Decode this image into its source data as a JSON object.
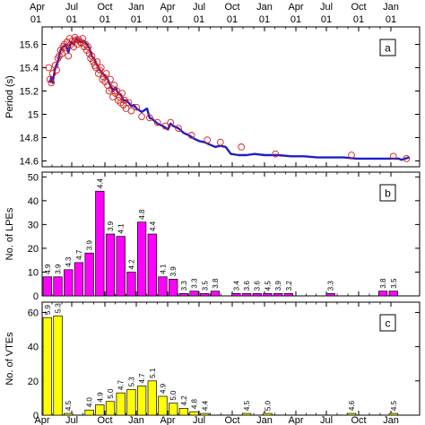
{
  "chart_data": [
    {
      "type": "line",
      "panel": "a",
      "ylabel": "Period (s)",
      "ylim": [
        14.55,
        15.75
      ],
      "yticks": [
        "15.6",
        "15.4",
        "15.2",
        "15",
        "14.8",
        "14.6"
      ],
      "top_axis_ticks": [
        {
          "month": "Apr",
          "day": "01"
        },
        {
          "month": "Jul",
          "day": "01"
        },
        {
          "month": "Oct",
          "day": "01"
        },
        {
          "month": "Jan",
          "day": "01"
        },
        {
          "month": "Apr",
          "day": "01"
        },
        {
          "month": "Jul",
          "day": "01"
        },
        {
          "month": "Oct",
          "day": "01"
        },
        {
          "month": "Jan",
          "day": "01"
        },
        {
          "month": "Apr",
          "day": "01"
        },
        {
          "month": "Jul",
          "day": "01"
        },
        {
          "month": "Oct",
          "day": "01"
        },
        {
          "month": "Jan",
          "day": "01"
        }
      ],
      "series": [
        {
          "kind": "line",
          "color": "#1f1fc8",
          "x": [
            3,
            3.5,
            4,
            5,
            6,
            7,
            8,
            9,
            10,
            11,
            12,
            13,
            14,
            15,
            16,
            17,
            18,
            19,
            20,
            21,
            22,
            23,
            24,
            25,
            26,
            27,
            28,
            29,
            30,
            31,
            32,
            33,
            34,
            35,
            36,
            38,
            40,
            41,
            42,
            44,
            46,
            48,
            49,
            50,
            52,
            54,
            56,
            58,
            60,
            62,
            64,
            66,
            68,
            70,
            72,
            75,
            78,
            81,
            85,
            90,
            95,
            100,
            105,
            110,
            115,
            120,
            125,
            130,
            136,
            137,
            140
          ],
          "y": [
            15.27,
            15.32,
            15.27,
            15.4,
            15.45,
            15.55,
            15.58,
            15.6,
            15.53,
            15.62,
            15.6,
            15.65,
            15.63,
            15.62,
            15.63,
            15.6,
            15.57,
            15.5,
            15.47,
            15.42,
            15.38,
            15.35,
            15.33,
            15.3,
            15.25,
            15.2,
            15.23,
            15.18,
            15.17,
            15.12,
            15.12,
            15.1,
            15.07,
            15.08,
            15.05,
            15.02,
            15.05,
            14.97,
            14.96,
            14.92,
            14.9,
            14.87,
            14.92,
            14.9,
            14.88,
            14.84,
            14.82,
            14.79,
            14.77,
            14.76,
            14.74,
            14.72,
            14.73,
            14.72,
            14.66,
            14.65,
            14.65,
            14.66,
            14.65,
            14.65,
            14.64,
            14.64,
            14.63,
            14.63,
            14.63,
            14.62,
            14.62,
            14.62,
            14.62,
            14.61,
            14.63
          ]
        },
        {
          "kind": "scatter",
          "color": "#d62020",
          "x": [
            2.5,
            3,
            3.5,
            4,
            5,
            5.5,
            6,
            6.5,
            7,
            7.5,
            8,
            8.5,
            9,
            9.5,
            10,
            10.5,
            11,
            11.5,
            12,
            12.5,
            13,
            13.5,
            14,
            14.5,
            15,
            15.5,
            16,
            16.5,
            17,
            17.5,
            18,
            18.5,
            19,
            19.5,
            20,
            20.5,
            21,
            21.5,
            22,
            22.5,
            23,
            23.5,
            24,
            24.5,
            25,
            25.5,
            26,
            26.5,
            27,
            27.5,
            28,
            28.5,
            29,
            29.5,
            30,
            30.5,
            31,
            31.5,
            32,
            33,
            34,
            36,
            38,
            41,
            44,
            47,
            49,
            52,
            57,
            63,
            68,
            76,
            89,
            118,
            134,
            139
          ],
          "y": [
            15.4,
            15.3,
            15.27,
            15.35,
            15.42,
            15.38,
            15.48,
            15.5,
            15.55,
            15.52,
            15.58,
            15.6,
            15.57,
            15.62,
            15.5,
            15.65,
            15.6,
            15.63,
            15.58,
            15.66,
            15.64,
            15.6,
            15.64,
            15.62,
            15.61,
            15.65,
            15.58,
            15.6,
            15.55,
            15.58,
            15.52,
            15.48,
            15.5,
            15.45,
            15.42,
            15.4,
            15.45,
            15.35,
            15.38,
            15.4,
            15.3,
            15.32,
            15.28,
            15.35,
            15.25,
            15.2,
            15.3,
            15.22,
            15.15,
            15.25,
            15.18,
            15.2,
            15.12,
            15.15,
            15.1,
            15.18,
            15.08,
            15.12,
            15.05,
            15.1,
            15.03,
            15.06,
            14.98,
            14.97,
            14.93,
            14.9,
            14.93,
            14.88,
            14.82,
            14.78,
            14.76,
            14.72,
            14.66,
            14.65,
            14.64,
            14.62
          ]
        }
      ]
    },
    {
      "type": "bar",
      "panel": "b",
      "ylabel": "No. of LPEs",
      "ylim": [
        0,
        52
      ],
      "yticks": [
        "50",
        "40",
        "30",
        "20",
        "10",
        "0"
      ],
      "bar_color": "#ff00ff",
      "bars": [
        {
          "x": 1,
          "value": 8,
          "label": "4.9"
        },
        {
          "x": 2,
          "value": 8,
          "label": "3.9"
        },
        {
          "x": 3,
          "value": 11,
          "label": "4.3"
        },
        {
          "x": 4,
          "value": 14,
          "label": "4.7"
        },
        {
          "x": 5,
          "value": 18,
          "label": "3.9"
        },
        {
          "x": 6,
          "value": 44,
          "label": "4.4"
        },
        {
          "x": 7,
          "value": 26,
          "label": "3.9"
        },
        {
          "x": 8,
          "value": 25,
          "label": "4.1"
        },
        {
          "x": 9,
          "value": 10,
          "label": "4.2"
        },
        {
          "x": 10,
          "value": 31,
          "label": "4.8"
        },
        {
          "x": 11,
          "value": 26,
          "label": "4.4"
        },
        {
          "x": 12,
          "value": 8,
          "label": "4.1"
        },
        {
          "x": 13,
          "value": 7,
          "label": "3.9"
        },
        {
          "x": 14,
          "value": 1,
          "label": "3.3"
        },
        {
          "x": 15,
          "value": 2,
          "label": "3.3"
        },
        {
          "x": 16,
          "value": 1,
          "label": "3.5"
        },
        {
          "x": 17,
          "value": 2,
          "label": "3.8"
        },
        {
          "x": 19,
          "value": 1,
          "label": "3.4"
        },
        {
          "x": 20,
          "value": 1,
          "label": "3.6"
        },
        {
          "x": 21,
          "value": 1,
          "label": "3.6"
        },
        {
          "x": 22,
          "value": 1,
          "label": "4.5"
        },
        {
          "x": 23,
          "value": 1,
          "label": "3.9"
        },
        {
          "x": 24,
          "value": 1,
          "label": "3.2"
        },
        {
          "x": 28,
          "value": 1,
          "label": "3.3"
        },
        {
          "x": 33,
          "value": 2,
          "label": "3.8"
        },
        {
          "x": 34,
          "value": 2,
          "label": "3.5"
        }
      ]
    },
    {
      "type": "bar",
      "panel": "c",
      "ylabel": "No. of VTEs",
      "ylim": [
        0,
        66
      ],
      "yticks": [
        "60",
        "40",
        "20",
        "0"
      ],
      "bar_color": "#ffff00",
      "bottom_axis_ticks": [
        "Apr",
        "Jul",
        "Oct",
        "Jan",
        "Apr",
        "Jul",
        "Oct",
        "Jan",
        "Apr",
        "Jul",
        "Oct",
        "Jan"
      ],
      "bars": [
        {
          "x": 1,
          "value": 57,
          "label": "5.9"
        },
        {
          "x": 2,
          "value": 58,
          "label": "5.3"
        },
        {
          "x": 3,
          "value": 1,
          "label": "4.5"
        },
        {
          "x": 5,
          "value": 3,
          "label": "4.0"
        },
        {
          "x": 6,
          "value": 6,
          "label": "4.9"
        },
        {
          "x": 7,
          "value": 8,
          "label": "5.0"
        },
        {
          "x": 8,
          "value": 13,
          "label": "4.7"
        },
        {
          "x": 9,
          "value": 15,
          "label": "5.3"
        },
        {
          "x": 10,
          "value": 17,
          "label": "4.7"
        },
        {
          "x": 11,
          "value": 20,
          "label": "5.1"
        },
        {
          "x": 12,
          "value": 11,
          "label": "4.9"
        },
        {
          "x": 13,
          "value": 7,
          "label": "5.0"
        },
        {
          "x": 14,
          "value": 4,
          "label": "4.2"
        },
        {
          "x": 15,
          "value": 2,
          "label": "4.8"
        },
        {
          "x": 16,
          "value": 1,
          "label": "4.4"
        },
        {
          "x": 20,
          "value": 1,
          "label": "4.5"
        },
        {
          "x": 22,
          "value": 1,
          "label": "5.0"
        },
        {
          "x": 30,
          "value": 1,
          "label": "4.6"
        },
        {
          "x": 34,
          "value": 1,
          "label": "4.5"
        }
      ]
    }
  ]
}
